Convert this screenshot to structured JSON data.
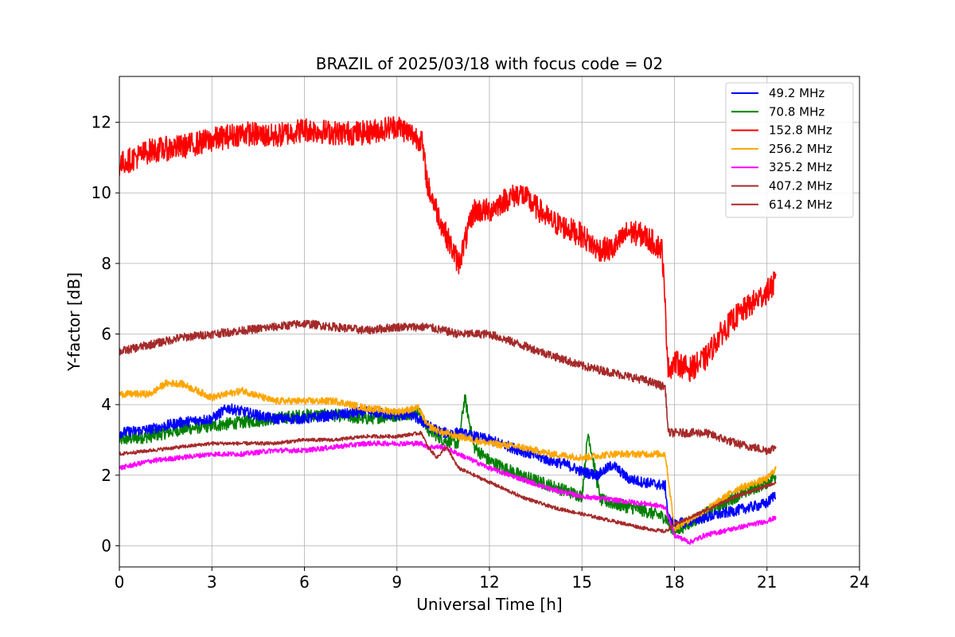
{
  "chart_data": {
    "type": "line",
    "title": "BRAZIL of 2025/03/18 with focus code = 02",
    "xlabel": "Universal Time [h]",
    "ylabel": "Y-factor [dB]",
    "xlim": [
      0,
      24
    ],
    "ylim": [
      -0.6,
      13.3
    ],
    "xticks": [
      0,
      3,
      6,
      9,
      12,
      15,
      18,
      21,
      24
    ],
    "yticks": [
      0,
      2,
      4,
      6,
      8,
      10,
      12
    ],
    "grid": true,
    "legend_position": "top-right",
    "series": [
      {
        "name": " 49.2 MHz",
        "color": "#0000ff",
        "noise": 0.15,
        "x": [
          0,
          1,
          2,
          3,
          3.5,
          4,
          5,
          6,
          7,
          8,
          9,
          9.5,
          10,
          10.5,
          11,
          11.5,
          12,
          13,
          14,
          14.5,
          15,
          15.5,
          16,
          16.5,
          17,
          17.7,
          17.8,
          18,
          19,
          20,
          21,
          21.3
        ],
        "y": [
          3.2,
          3.3,
          3.5,
          3.6,
          3.9,
          3.8,
          3.6,
          3.6,
          3.7,
          3.8,
          3.7,
          3.7,
          3.4,
          3.2,
          3.2,
          3.1,
          3.0,
          2.7,
          2.4,
          2.3,
          2.1,
          2.0,
          2.3,
          1.9,
          1.8,
          1.7,
          0.8,
          0.6,
          0.8,
          1.0,
          1.2,
          1.5
        ]
      },
      {
        "name": " 70.8 MHz",
        "color": "#008000",
        "noise": 0.18,
        "x": [
          0,
          1,
          2,
          3,
          4,
          5,
          6,
          7,
          8,
          9,
          9.7,
          10,
          10.5,
          11,
          11.2,
          11.5,
          12,
          13,
          14,
          15,
          15.2,
          15.6,
          16,
          17,
          17.7,
          18,
          19,
          20,
          21,
          21.3
        ],
        "y": [
          3.0,
          3.1,
          3.3,
          3.4,
          3.5,
          3.6,
          3.7,
          3.7,
          3.6,
          3.7,
          3.8,
          3.3,
          3.0,
          2.9,
          4.2,
          2.8,
          2.4,
          2.0,
          1.7,
          1.4,
          3.2,
          1.3,
          1.2,
          1.0,
          0.8,
          0.4,
          0.9,
          1.4,
          1.8,
          2.0
        ]
      },
      {
        "name": " 152.8 MHz",
        "color": "#ff0000",
        "noise": 0.35,
        "x": [
          0,
          1,
          2,
          3,
          4,
          5,
          6,
          7,
          8,
          9,
          9.8,
          10,
          10.5,
          11,
          11.5,
          12,
          12.5,
          13,
          14,
          14.5,
          15,
          15.5,
          16,
          16.5,
          17,
          17.6,
          17.8,
          18,
          18.5,
          19,
          19.5,
          20,
          21,
          21.3
        ],
        "y": [
          10.8,
          11.2,
          11.3,
          11.5,
          11.7,
          11.6,
          11.8,
          11.7,
          11.7,
          11.9,
          11.5,
          10.2,
          9.0,
          8.0,
          9.5,
          9.5,
          9.8,
          10.0,
          9.2,
          9.0,
          8.8,
          8.4,
          8.4,
          8.9,
          8.8,
          8.4,
          5.0,
          5.2,
          5.0,
          5.3,
          6.0,
          6.5,
          7.2,
          7.5
        ]
      },
      {
        "name": " 256.2 MHz",
        "color": "#ffa500",
        "noise": 0.1,
        "x": [
          0,
          1,
          1.5,
          2,
          2.5,
          3,
          4,
          5,
          6,
          7,
          8,
          9,
          9.7,
          10,
          10.5,
          11,
          11.5,
          12,
          13,
          14,
          15,
          16,
          17,
          17.7,
          18,
          19,
          20,
          21,
          21.3
        ],
        "y": [
          4.3,
          4.3,
          4.6,
          4.6,
          4.4,
          4.2,
          4.4,
          4.1,
          4.1,
          4.1,
          3.9,
          3.8,
          3.9,
          3.4,
          3.2,
          3.1,
          3.0,
          2.9,
          2.8,
          2.6,
          2.5,
          2.6,
          2.6,
          2.6,
          0.5,
          1.0,
          1.6,
          1.9,
          2.2
        ]
      },
      {
        "name": " 325.2 MHz",
        "color": "#ff00ff",
        "noise": 0.07,
        "x": [
          0,
          1,
          2,
          3,
          4,
          5,
          6,
          7,
          8,
          9,
          9.8,
          10,
          10.5,
          11,
          11.5,
          12,
          13,
          14,
          15,
          16,
          17,
          17.7,
          18,
          18.5,
          19,
          20,
          21,
          21.3
        ],
        "y": [
          2.2,
          2.4,
          2.5,
          2.6,
          2.6,
          2.7,
          2.7,
          2.8,
          2.9,
          2.9,
          2.9,
          2.8,
          2.8,
          2.6,
          2.4,
          2.2,
          1.9,
          1.6,
          1.4,
          1.3,
          1.2,
          1.1,
          0.3,
          0.1,
          0.3,
          0.5,
          0.7,
          0.8
        ]
      },
      {
        "name": " 407.2 MHz",
        "color": "#a52a2a",
        "noise": 0.05,
        "x": [
          0,
          1,
          2,
          3,
          4,
          5,
          6,
          7,
          8,
          9,
          9.8,
          10,
          10.3,
          10.6,
          11,
          11.5,
          12,
          13,
          14,
          15,
          16,
          17,
          17.7,
          18,
          19,
          20,
          21,
          21.3
        ],
        "y": [
          2.6,
          2.7,
          2.8,
          2.9,
          2.9,
          2.9,
          3.0,
          3.0,
          3.1,
          3.1,
          3.2,
          2.8,
          2.5,
          2.8,
          2.2,
          2.0,
          1.8,
          1.4,
          1.1,
          0.9,
          0.7,
          0.5,
          0.4,
          0.6,
          1.0,
          1.4,
          1.7,
          1.8
        ]
      },
      {
        "name": " 614.2 MHz",
        "color": "#a52a2a",
        "noise": 0.12,
        "x": [
          0,
          1,
          2,
          3,
          4,
          5,
          6,
          7,
          8,
          9,
          9.8,
          10,
          11,
          12,
          13,
          14,
          15,
          16,
          17,
          17.7,
          17.8,
          18,
          19,
          20,
          21,
          21.3
        ],
        "y": [
          5.5,
          5.7,
          5.9,
          6.0,
          6.1,
          6.2,
          6.3,
          6.2,
          6.1,
          6.2,
          6.2,
          6.2,
          6.0,
          6.0,
          5.7,
          5.4,
          5.1,
          4.9,
          4.7,
          4.5,
          3.2,
          3.2,
          3.2,
          2.9,
          2.7,
          2.8
        ]
      }
    ]
  }
}
